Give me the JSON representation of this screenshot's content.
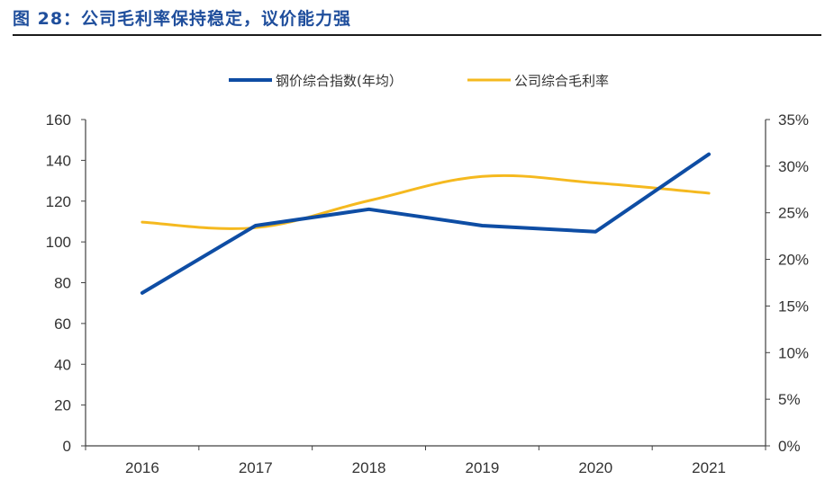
{
  "header": {
    "title": "图 28：公司毛利率保持稳定，议价能力强"
  },
  "colors": {
    "steel": "#0e4da4",
    "margin": "#f5b91f",
    "title": "#1f4e9c",
    "axis": "#404040"
  },
  "chart_data": {
    "type": "line",
    "title": "",
    "categories": [
      "2016",
      "2017",
      "2018",
      "2019",
      "2020",
      "2021"
    ],
    "series": [
      {
        "name": "钢价综合指数(年均）",
        "axis": "left",
        "values": [
          75,
          108,
          116,
          108,
          105,
          143
        ]
      },
      {
        "name": "公司综合毛利率",
        "axis": "right",
        "values": [
          24.0,
          23.4,
          26.3,
          28.9,
          28.2,
          27.1
        ]
      }
    ],
    "y_left": {
      "min": 0,
      "max": 160,
      "ticks": [
        "0",
        "20",
        "40",
        "60",
        "80",
        "100",
        "120",
        "140",
        "160"
      ]
    },
    "y_right": {
      "min": 0,
      "max": 35,
      "ticks": [
        "0%",
        "5%",
        "10%",
        "15%",
        "20%",
        "25%",
        "30%",
        "35%"
      ]
    },
    "legend_position": "top",
    "grid": false
  }
}
